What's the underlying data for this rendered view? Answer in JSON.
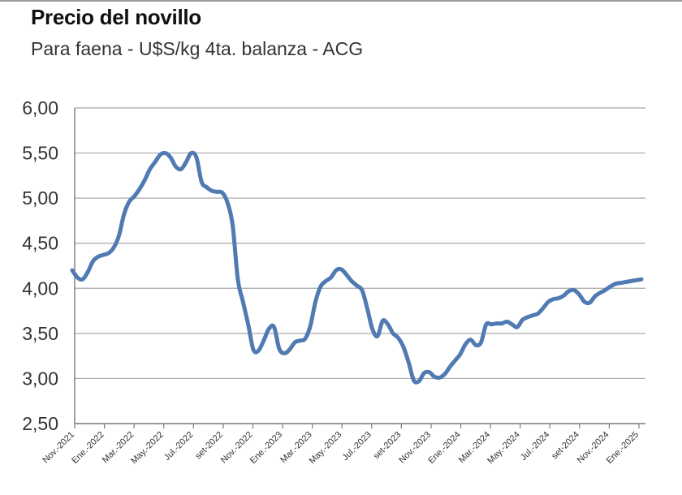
{
  "header": {
    "title": "Precio del novillo",
    "subtitle": "Para faena - U$S/kg 4ta. balanza - ACG"
  },
  "chart_data": {
    "type": "line",
    "title": "Precio del novillo",
    "subtitle": "Para faena - U$S/kg 4ta. balanza - ACG",
    "xlabel": "",
    "ylabel": "",
    "ylim": [
      2.5,
      6.0
    ],
    "yticks": [
      "2,50",
      "3,00",
      "3,50",
      "4,00",
      "4,50",
      "5,00",
      "5,50",
      "6,00"
    ],
    "xtick_labels": [
      "Nov.-2021",
      "Ene.-2022",
      "Mar.-2022",
      "May.-2022",
      "Jul.-2022",
      "set-2022",
      "Nov.-2022",
      "Ene.-2023",
      "Mar.-2023",
      "May.-2023",
      "Jul.-2023",
      "set-2023",
      "Nov.-2023",
      "Ene.-2024",
      "Mar.-2024",
      "May.-2024",
      "Jul.-2024",
      "set-2024",
      "Nov.-2024",
      "Ene.-2025"
    ],
    "x_start": "Nov.-2021",
    "x_end": "Feb.-2025",
    "grid": true,
    "line_color": "#4f7ab2",
    "series": [
      {
        "name": "",
        "values": [
          4.2,
          4.12,
          4.1,
          4.18,
          4.3,
          4.35,
          4.37,
          4.39,
          4.45,
          4.58,
          4.82,
          4.96,
          5.02,
          5.1,
          5.2,
          5.32,
          5.4,
          5.48,
          5.5,
          5.45,
          5.35,
          5.32,
          5.4,
          5.5,
          5.45,
          5.18,
          5.12,
          5.08,
          5.07,
          5.06,
          4.95,
          4.7,
          4.1,
          3.85,
          3.6,
          3.32,
          3.31,
          3.42,
          3.55,
          3.57,
          3.33,
          3.28,
          3.32,
          3.4,
          3.42,
          3.44,
          3.58,
          3.85,
          4.02,
          4.08,
          4.12,
          4.2,
          4.21,
          4.15,
          4.08,
          4.03,
          3.98,
          3.78,
          3.55,
          3.47,
          3.64,
          3.6,
          3.5,
          3.45,
          3.35,
          3.18,
          2.98,
          2.97,
          3.06,
          3.07,
          3.02,
          3.01,
          3.05,
          3.13,
          3.2,
          3.27,
          3.38,
          3.43,
          3.37,
          3.4,
          3.6,
          3.6,
          3.61,
          3.61,
          3.63,
          3.6,
          3.57,
          3.65,
          3.68,
          3.7,
          3.72,
          3.78,
          3.85,
          3.88,
          3.89,
          3.92,
          3.97,
          3.98,
          3.93,
          3.85,
          3.84,
          3.91,
          3.95,
          3.98,
          4.02,
          4.05,
          4.06,
          4.07,
          4.08,
          4.09,
          4.1
        ]
      }
    ]
  }
}
